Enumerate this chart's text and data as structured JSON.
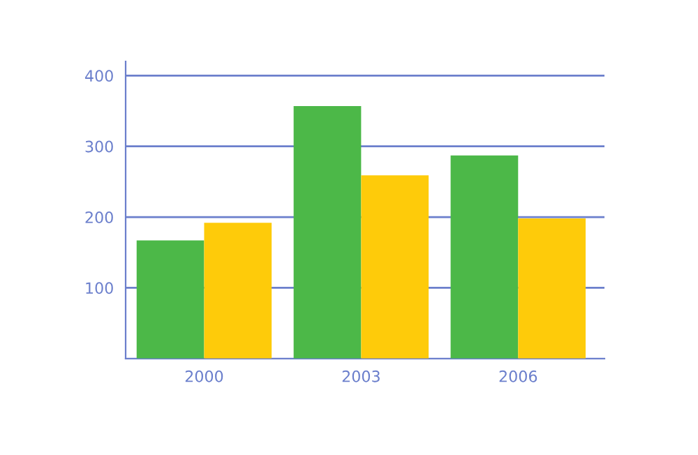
{
  "chart_data": {
    "type": "bar",
    "categories": [
      "2000",
      "2003",
      "2006"
    ],
    "series": [
      {
        "color": "#4cb848",
        "values": [
          167,
          357,
          287
        ]
      },
      {
        "color": "#fecb0a",
        "values": [
          192,
          259,
          198
        ]
      }
    ],
    "ylim": [
      0,
      420
    ],
    "yticks": [
      100,
      200,
      300,
      400
    ],
    "grid": "y"
  }
}
